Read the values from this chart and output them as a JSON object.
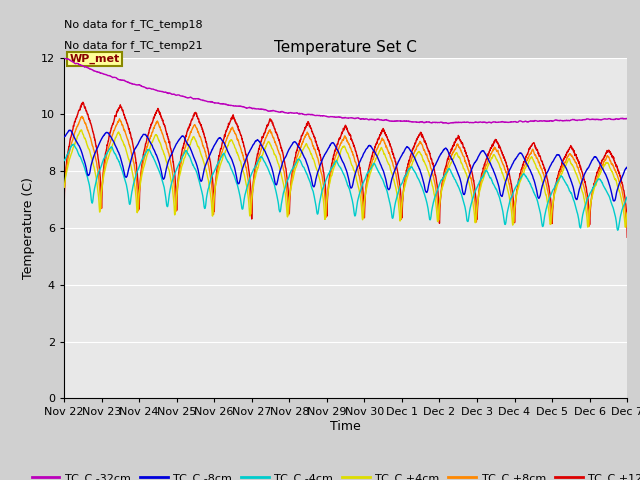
{
  "title": "Temperature Set C",
  "xlabel": "Time",
  "ylabel": "Temperature (C)",
  "ylim": [
    0,
    12
  ],
  "yticks": [
    0,
    2,
    4,
    6,
    8,
    10,
    12
  ],
  "bg_color": "#e0e0e0",
  "annotations": [
    "No data for f_TC_temp18",
    "No data for f_TC_temp21"
  ],
  "wp_met_label": "WP_met",
  "legend_entries": [
    "TC_C -32cm",
    "TC_C -8cm",
    "TC_C -4cm",
    "TC_C +4cm",
    "TC_C +8cm",
    "TC_C +12cm"
  ],
  "line_colors": [
    "#bb00bb",
    "#0000dd",
    "#00cccc",
    "#dddd00",
    "#ff8800",
    "#dd0000"
  ],
  "date_labels": [
    "Nov 22",
    "Nov 23",
    "Nov 24",
    "Nov 25",
    "Nov 26",
    "Nov 27",
    "Nov 28",
    "Nov 29",
    "Nov 30",
    "Dec 1",
    "Dec 2",
    "Dec 3",
    "Dec 4",
    "Dec 5",
    "Dec 6",
    "Dec 7"
  ],
  "duration_days": 15,
  "num_points": 4000
}
